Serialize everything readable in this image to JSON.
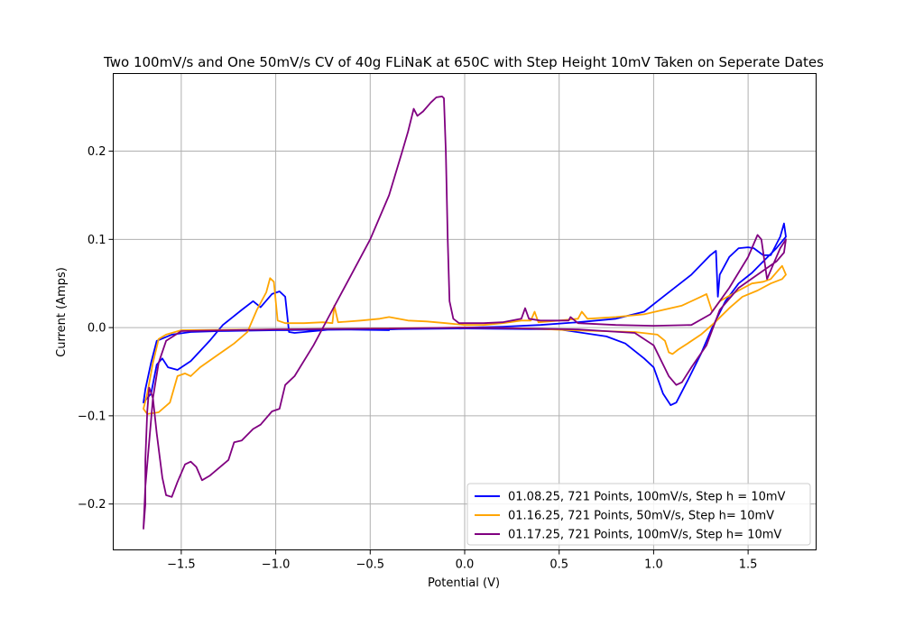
{
  "chart_data": {
    "type": "line",
    "title": "Two 100mV/s and One 50mV/s CV of 40g FLiNaK at 650C with Step Height 10mV Taken on Seperate Dates",
    "xlabel": "Potential (V)",
    "ylabel": "Current (Amps)",
    "xlim": [
      -1.86,
      1.86
    ],
    "ylim": [
      -0.252,
      0.288
    ],
    "xticks": [
      -1.5,
      -1.0,
      -0.5,
      0.0,
      0.5,
      1.0,
      1.5
    ],
    "xtick_labels": [
      "−1.5",
      "−1.0",
      "−0.5",
      "0.0",
      "0.5",
      "1.0",
      "1.5"
    ],
    "yticks": [
      -0.2,
      -0.1,
      0.0,
      0.1,
      0.2
    ],
    "ytick_labels": [
      "−0.2",
      "−0.1",
      "0.0",
      "0.1",
      "0.2"
    ],
    "grid": true,
    "legend_position": "lower-right",
    "series": [
      {
        "name": "01.08.25, 721 Points, 100mV/s, Step h = 10mV",
        "color": "#0000ff",
        "points": [
          [
            -0.4,
            -0.003
          ],
          [
            -0.7,
            -0.002
          ],
          [
            -0.9,
            -0.006
          ],
          [
            -0.93,
            -0.005
          ],
          [
            -0.95,
            0.035
          ],
          [
            -0.98,
            0.041
          ],
          [
            -1.02,
            0.038
          ],
          [
            -1.08,
            0.023
          ],
          [
            -1.12,
            0.03
          ],
          [
            -1.18,
            0.02
          ],
          [
            -1.28,
            0.003
          ],
          [
            -1.35,
            -0.015
          ],
          [
            -1.45,
            -0.038
          ],
          [
            -1.52,
            -0.048
          ],
          [
            -1.57,
            -0.045
          ],
          [
            -1.6,
            -0.035
          ],
          [
            -1.63,
            -0.042
          ],
          [
            -1.66,
            -0.075
          ],
          [
            -1.68,
            -0.08
          ],
          [
            -1.7,
            -0.085
          ],
          [
            -1.69,
            -0.07
          ],
          [
            -1.66,
            -0.04
          ],
          [
            -1.63,
            -0.015
          ],
          [
            -1.55,
            -0.008
          ],
          [
            -1.45,
            -0.005
          ],
          [
            -1.3,
            -0.004
          ],
          [
            -1.0,
            -0.003
          ],
          [
            -0.5,
            -0.002
          ],
          [
            0.0,
            -0.001
          ],
          [
            0.5,
            -0.002
          ],
          [
            0.75,
            -0.01
          ],
          [
            0.85,
            -0.018
          ],
          [
            0.95,
            -0.035
          ],
          [
            1.0,
            -0.045
          ],
          [
            1.05,
            -0.075
          ],
          [
            1.09,
            -0.088
          ],
          [
            1.12,
            -0.085
          ],
          [
            1.18,
            -0.06
          ],
          [
            1.25,
            -0.03
          ],
          [
            1.31,
            0.0
          ],
          [
            1.38,
            0.03
          ],
          [
            1.45,
            0.05
          ],
          [
            1.52,
            0.062
          ],
          [
            1.58,
            0.075
          ],
          [
            1.65,
            0.09
          ],
          [
            1.7,
            0.103
          ],
          [
            1.69,
            0.118
          ],
          [
            1.67,
            0.103
          ],
          [
            1.62,
            0.082
          ],
          [
            1.58,
            0.082
          ],
          [
            1.53,
            0.09
          ],
          [
            1.5,
            0.091
          ],
          [
            1.45,
            0.09
          ],
          [
            1.4,
            0.08
          ],
          [
            1.35,
            0.06
          ],
          [
            1.34,
            0.035
          ],
          [
            1.33,
            0.087
          ],
          [
            1.3,
            0.082
          ],
          [
            1.2,
            0.06
          ],
          [
            1.05,
            0.035
          ],
          [
            0.95,
            0.018
          ],
          [
            0.8,
            0.01
          ],
          [
            0.6,
            0.006
          ],
          [
            0.4,
            0.003
          ],
          [
            0.2,
            0.001
          ],
          [
            0.0,
            0.0
          ],
          [
            -0.4,
            -0.002
          ]
        ]
      },
      {
        "name": "01.16.25, 721 Points, 50mV/s, Step h= 10mV",
        "color": "#ffa500",
        "points": [
          [
            0.55,
            -0.003
          ],
          [
            0.35,
            -0.001
          ],
          [
            0.0,
            0.0
          ],
          [
            -0.5,
            -0.001
          ],
          [
            -1.0,
            -0.002
          ],
          [
            -1.5,
            -0.003
          ],
          [
            -1.58,
            -0.008
          ],
          [
            -1.62,
            -0.013
          ],
          [
            -1.65,
            -0.04
          ],
          [
            -1.68,
            -0.075
          ],
          [
            -1.7,
            -0.092
          ],
          [
            -1.68,
            -0.098
          ],
          [
            -1.62,
            -0.096
          ],
          [
            -1.56,
            -0.085
          ],
          [
            -1.52,
            -0.055
          ],
          [
            -1.48,
            -0.052
          ],
          [
            -1.45,
            -0.055
          ],
          [
            -1.4,
            -0.045
          ],
          [
            -1.3,
            -0.03
          ],
          [
            -1.22,
            -0.018
          ],
          [
            -1.15,
            -0.005
          ],
          [
            -1.1,
            0.02
          ],
          [
            -1.05,
            0.04
          ],
          [
            -1.03,
            0.056
          ],
          [
            -1.01,
            0.052
          ],
          [
            -0.99,
            0.008
          ],
          [
            -0.95,
            0.005
          ],
          [
            -0.85,
            0.005
          ],
          [
            -0.75,
            0.006
          ],
          [
            -0.7,
            0.005
          ],
          [
            -0.69,
            0.025
          ],
          [
            -0.67,
            0.006
          ],
          [
            -0.55,
            0.008
          ],
          [
            -0.45,
            0.01
          ],
          [
            -0.4,
            0.012
          ],
          [
            -0.3,
            0.008
          ],
          [
            -0.2,
            0.007
          ],
          [
            -0.1,
            0.005
          ],
          [
            0.0,
            0.003
          ],
          [
            0.1,
            0.003
          ],
          [
            0.2,
            0.005
          ],
          [
            0.3,
            0.008
          ],
          [
            0.35,
            0.008
          ],
          [
            0.37,
            0.018
          ],
          [
            0.39,
            0.006
          ],
          [
            0.5,
            0.008
          ],
          [
            0.6,
            0.01
          ],
          [
            0.62,
            0.018
          ],
          [
            0.65,
            0.01
          ],
          [
            0.8,
            0.012
          ],
          [
            0.95,
            0.015
          ],
          [
            1.05,
            0.02
          ],
          [
            1.15,
            0.025
          ],
          [
            1.25,
            0.035
          ],
          [
            1.28,
            0.038
          ],
          [
            1.31,
            0.018
          ],
          [
            1.35,
            0.03
          ],
          [
            1.45,
            0.042
          ],
          [
            1.52,
            0.05
          ],
          [
            1.58,
            0.052
          ],
          [
            1.62,
            0.055
          ],
          [
            1.66,
            0.065
          ],
          [
            1.68,
            0.07
          ],
          [
            1.7,
            0.06
          ],
          [
            1.68,
            0.055
          ],
          [
            1.62,
            0.05
          ],
          [
            1.55,
            0.042
          ],
          [
            1.47,
            0.035
          ],
          [
            1.4,
            0.022
          ],
          [
            1.32,
            0.005
          ],
          [
            1.25,
            -0.008
          ],
          [
            1.18,
            -0.018
          ],
          [
            1.13,
            -0.025
          ],
          [
            1.1,
            -0.03
          ],
          [
            1.08,
            -0.028
          ],
          [
            1.06,
            -0.015
          ],
          [
            1.02,
            -0.008
          ],
          [
            0.9,
            -0.005
          ],
          [
            0.55,
            -0.003
          ]
        ]
      },
      {
        "name": "01.17.25, 721 Points, 100mV/s, Step h= 10mV",
        "color": "#800080",
        "points": [
          [
            -0.4,
            -0.001
          ],
          [
            -1.0,
            -0.002
          ],
          [
            -1.5,
            -0.004
          ],
          [
            -1.58,
            -0.015
          ],
          [
            -1.62,
            -0.04
          ],
          [
            -1.65,
            -0.08
          ],
          [
            -1.67,
            -0.13
          ],
          [
            -1.69,
            -0.18
          ],
          [
            -1.7,
            -0.228
          ],
          [
            -1.69,
            -0.2
          ],
          [
            -1.69,
            -0.15
          ],
          [
            -1.68,
            -0.095
          ],
          [
            -1.67,
            -0.068
          ],
          [
            -1.65,
            -0.08
          ],
          [
            -1.63,
            -0.12
          ],
          [
            -1.6,
            -0.17
          ],
          [
            -1.58,
            -0.19
          ],
          [
            -1.55,
            -0.192
          ],
          [
            -1.52,
            -0.175
          ],
          [
            -1.48,
            -0.155
          ],
          [
            -1.45,
            -0.152
          ],
          [
            -1.42,
            -0.158
          ],
          [
            -1.39,
            -0.173
          ],
          [
            -1.35,
            -0.168
          ],
          [
            -1.25,
            -0.15
          ],
          [
            -1.22,
            -0.13
          ],
          [
            -1.18,
            -0.128
          ],
          [
            -1.12,
            -0.115
          ],
          [
            -1.08,
            -0.11
          ],
          [
            -1.02,
            -0.095
          ],
          [
            -0.98,
            -0.092
          ],
          [
            -0.95,
            -0.065
          ],
          [
            -0.9,
            -0.055
          ],
          [
            -0.8,
            -0.02
          ],
          [
            -0.7,
            0.02
          ],
          [
            -0.6,
            0.06
          ],
          [
            -0.5,
            0.1
          ],
          [
            -0.4,
            0.15
          ],
          [
            -0.33,
            0.2
          ],
          [
            -0.3,
            0.222
          ],
          [
            -0.27,
            0.248
          ],
          [
            -0.25,
            0.24
          ],
          [
            -0.22,
            0.245
          ],
          [
            -0.18,
            0.255
          ],
          [
            -0.15,
            0.261
          ],
          [
            -0.12,
            0.262
          ],
          [
            -0.11,
            0.26
          ],
          [
            -0.1,
            0.2
          ],
          [
            -0.09,
            0.1
          ],
          [
            -0.08,
            0.03
          ],
          [
            -0.06,
            0.01
          ],
          [
            -0.03,
            0.005
          ],
          [
            0.1,
            0.005
          ],
          [
            0.2,
            0.006
          ],
          [
            0.3,
            0.01
          ],
          [
            0.32,
            0.022
          ],
          [
            0.34,
            0.01
          ],
          [
            0.4,
            0.008
          ],
          [
            0.5,
            0.008
          ],
          [
            0.55,
            0.008
          ],
          [
            0.56,
            0.012
          ],
          [
            0.6,
            0.005
          ],
          [
            0.8,
            0.003
          ],
          [
            1.0,
            0.002
          ],
          [
            1.2,
            0.003
          ],
          [
            1.3,
            0.015
          ],
          [
            1.4,
            0.045
          ],
          [
            1.5,
            0.08
          ],
          [
            1.55,
            0.105
          ],
          [
            1.57,
            0.1
          ],
          [
            1.6,
            0.055
          ],
          [
            1.63,
            0.07
          ],
          [
            1.67,
            0.09
          ],
          [
            1.7,
            0.1
          ],
          [
            1.69,
            0.085
          ],
          [
            1.65,
            0.075
          ],
          [
            1.55,
            0.06
          ],
          [
            1.45,
            0.045
          ],
          [
            1.35,
            0.02
          ],
          [
            1.28,
            -0.02
          ],
          [
            1.2,
            -0.045
          ],
          [
            1.15,
            -0.062
          ],
          [
            1.12,
            -0.065
          ],
          [
            1.08,
            -0.055
          ],
          [
            1.0,
            -0.02
          ],
          [
            0.9,
            -0.006
          ],
          [
            0.6,
            -0.002
          ],
          [
            0.0,
            0.0
          ],
          [
            -0.4,
            -0.001
          ]
        ]
      }
    ]
  }
}
